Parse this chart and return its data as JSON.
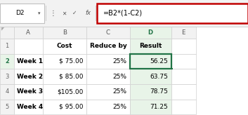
{
  "formula_bar_cell": "D2",
  "formula_bar_formula": "=B2*(1-C2)",
  "col_headers": [
    "A",
    "B",
    "C",
    "D",
    "E"
  ],
  "header_row": [
    "",
    "Cost",
    "Reduce by",
    "Result",
    ""
  ],
  "rows": [
    [
      "Week 1",
      "$ 75.00",
      "25%",
      "56.25",
      ""
    ],
    [
      "Week 2",
      "$ 85.00",
      "25%",
      "63.75",
      ""
    ],
    [
      "Week 3",
      "$105.00",
      "25%",
      "78.75",
      ""
    ],
    [
      "Week 4",
      "$ 95.00",
      "25%",
      "71.25",
      ""
    ]
  ],
  "background_color": "#ffffff",
  "grid_color": "#d0d0d0",
  "header_col_bg": "#f2f2f2",
  "selected_col_bg": "#e8f4e8",
  "selected_col_header_color": "#217346",
  "selected_cell_border": "#217346",
  "formula_bar_border": "#c0c0c0",
  "formula_box_bg": "#ffffff",
  "formula_highlight_border": "#c00000",
  "toolbar_bg": "#f2f2f2",
  "triangle_color": "#555555",
  "figsize": [
    3.53,
    1.64
  ],
  "dpi": 100
}
